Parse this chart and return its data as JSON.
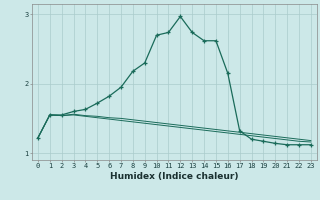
{
  "xlabel": "Humidex (Indice chaleur)",
  "bg_color": "#cce8e8",
  "line_color": "#1a6b5a",
  "grid_color": "#aacccc",
  "xlim": [
    -0.5,
    23.5
  ],
  "ylim": [
    0.9,
    3.15
  ],
  "yticks": [
    1,
    2,
    3
  ],
  "xticks": [
    0,
    1,
    2,
    3,
    4,
    5,
    6,
    7,
    8,
    9,
    10,
    11,
    12,
    13,
    14,
    15,
    16,
    17,
    18,
    19,
    20,
    21,
    22,
    23
  ],
  "line1_x": [
    0,
    1,
    2,
    3,
    4,
    5,
    6,
    7,
    8,
    9,
    10,
    11,
    12,
    13,
    14,
    15,
    16,
    17,
    18,
    19,
    20,
    21,
    22,
    23
  ],
  "line1_y": [
    1.22,
    1.55,
    1.55,
    1.6,
    1.63,
    1.72,
    1.82,
    1.95,
    2.18,
    2.3,
    2.7,
    2.74,
    2.97,
    2.74,
    2.62,
    2.62,
    2.15,
    1.32,
    1.2,
    1.17,
    1.14,
    1.12,
    1.12,
    1.12
  ],
  "line2_x": [
    0,
    1,
    2,
    3,
    4,
    5,
    6,
    7,
    8,
    9,
    10,
    11,
    12,
    13,
    14,
    15,
    16,
    17,
    18,
    19,
    20,
    21,
    22,
    23
  ],
  "line2_y": [
    1.22,
    1.55,
    1.54,
    1.56,
    1.54,
    1.53,
    1.51,
    1.5,
    1.48,
    1.46,
    1.44,
    1.42,
    1.4,
    1.38,
    1.36,
    1.34,
    1.32,
    1.3,
    1.28,
    1.26,
    1.24,
    1.22,
    1.2,
    1.18
  ],
  "line3_x": [
    0,
    1,
    2,
    3,
    4,
    5,
    6,
    7,
    8,
    9,
    10,
    11,
    12,
    13,
    14,
    15,
    16,
    17,
    18,
    19,
    20,
    21,
    22,
    23
  ],
  "line3_y": [
    1.22,
    1.55,
    1.54,
    1.55,
    1.53,
    1.51,
    1.49,
    1.47,
    1.45,
    1.43,
    1.41,
    1.39,
    1.37,
    1.35,
    1.33,
    1.31,
    1.29,
    1.27,
    1.25,
    1.23,
    1.21,
    1.19,
    1.17,
    1.16
  ]
}
